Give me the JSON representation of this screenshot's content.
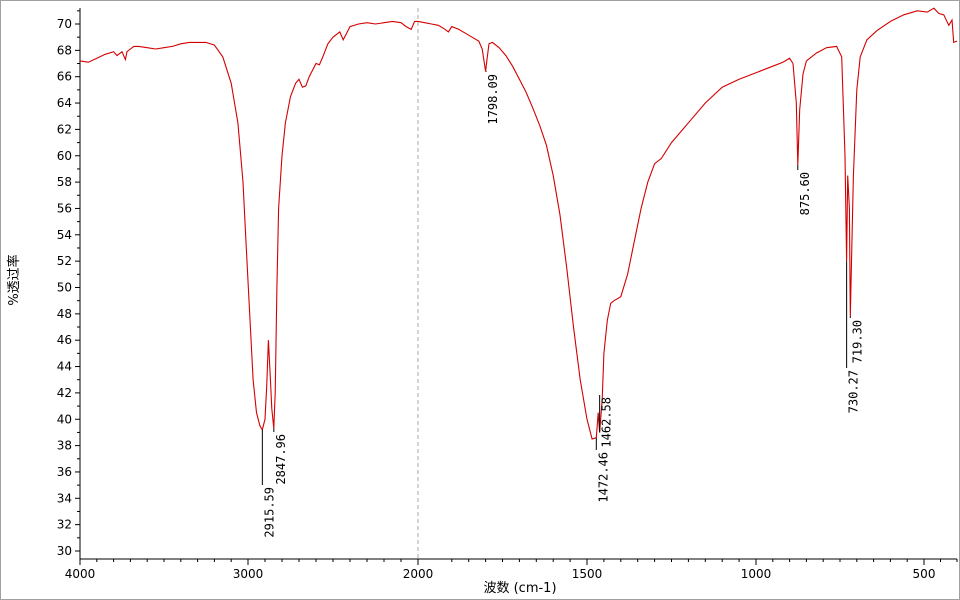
{
  "chart_data": {
    "type": "line",
    "xlabel": "波数 (cm-1)",
    "ylabel": "%透过率",
    "xlim": [
      4000,
      400
    ],
    "ylim": [
      29.5,
      71.2
    ],
    "x_ticks": [
      4000,
      3000,
      2000,
      1500,
      1000,
      500
    ],
    "x_tick_labels": [
      "4000",
      "3000",
      "2000",
      "1500",
      "1000",
      "500"
    ],
    "y_ticks": [
      30,
      32,
      34,
      36,
      38,
      40,
      42,
      44,
      46,
      48,
      50,
      52,
      54,
      56,
      58,
      60,
      62,
      64,
      66,
      68,
      70
    ],
    "y_tick_labels": [
      "30",
      "32",
      "34",
      "36",
      "38",
      "40",
      "42",
      "44",
      "46",
      "48",
      "50",
      "52",
      "54",
      "56",
      "58",
      "60",
      "62",
      "64",
      "66",
      "68",
      "70"
    ],
    "x_axis_scale": "reversed wavenumber scale, expanded below 2000 cm-1",
    "reference_line": 2000,
    "line_color": "#d40000",
    "series": [
      {
        "points": [
          [
            4000,
            67.2
          ],
          [
            3950,
            67.1
          ],
          [
            3900,
            67.4
          ],
          [
            3850,
            67.7
          ],
          [
            3800,
            67.9
          ],
          [
            3780,
            67.6
          ],
          [
            3750,
            67.9
          ],
          [
            3730,
            67.3
          ],
          [
            3720,
            67.9
          ],
          [
            3700,
            68.1
          ],
          [
            3680,
            68.3
          ],
          [
            3650,
            68.3
          ],
          [
            3600,
            68.2
          ],
          [
            3550,
            68.1
          ],
          [
            3500,
            68.2
          ],
          [
            3450,
            68.3
          ],
          [
            3400,
            68.5
          ],
          [
            3350,
            68.6
          ],
          [
            3300,
            68.6
          ],
          [
            3250,
            68.6
          ],
          [
            3200,
            68.4
          ],
          [
            3150,
            67.5
          ],
          [
            3100,
            65.5
          ],
          [
            3060,
            62.5
          ],
          [
            3030,
            58.0
          ],
          [
            3010,
            53.0
          ],
          [
            2990,
            48.0
          ],
          [
            2970,
            43.0
          ],
          [
            2950,
            40.5
          ],
          [
            2930,
            39.5
          ],
          [
            2915.59,
            39.2
          ],
          [
            2900,
            40.0
          ],
          [
            2890,
            42.5
          ],
          [
            2880,
            46.0
          ],
          [
            2870,
            43.5
          ],
          [
            2860,
            40.8
          ],
          [
            2847.96,
            39.3
          ],
          [
            2840,
            42.0
          ],
          [
            2830,
            50.0
          ],
          [
            2820,
            56.0
          ],
          [
            2800,
            60.0
          ],
          [
            2780,
            62.5
          ],
          [
            2750,
            64.5
          ],
          [
            2720,
            65.5
          ],
          [
            2700,
            65.8
          ],
          [
            2680,
            65.2
          ],
          [
            2660,
            65.3
          ],
          [
            2640,
            66.0
          ],
          [
            2600,
            67.0
          ],
          [
            2580,
            66.9
          ],
          [
            2560,
            67.5
          ],
          [
            2530,
            68.5
          ],
          [
            2500,
            69.0
          ],
          [
            2460,
            69.4
          ],
          [
            2440,
            68.8
          ],
          [
            2420,
            69.3
          ],
          [
            2400,
            69.8
          ],
          [
            2350,
            70.0
          ],
          [
            2300,
            70.1
          ],
          [
            2250,
            70.0
          ],
          [
            2200,
            70.1
          ],
          [
            2150,
            70.2
          ],
          [
            2100,
            70.1
          ],
          [
            2070,
            69.8
          ],
          [
            2040,
            69.6
          ],
          [
            2020,
            70.2
          ],
          [
            2000,
            70.2
          ],
          [
            1980,
            70.1
          ],
          [
            1960,
            70.0
          ],
          [
            1940,
            69.9
          ],
          [
            1920,
            69.6
          ],
          [
            1910,
            69.4
          ],
          [
            1900,
            69.8
          ],
          [
            1880,
            69.6
          ],
          [
            1860,
            69.3
          ],
          [
            1840,
            69.0
          ],
          [
            1820,
            68.7
          ],
          [
            1810,
            68.1
          ],
          [
            1800,
            66.4
          ],
          [
            1795,
            67.5
          ],
          [
            1790,
            68.5
          ],
          [
            1780,
            68.6
          ],
          [
            1760,
            68.2
          ],
          [
            1740,
            67.6
          ],
          [
            1720,
            66.8
          ],
          [
            1700,
            65.8
          ],
          [
            1680,
            64.8
          ],
          [
            1660,
            63.6
          ],
          [
            1640,
            62.3
          ],
          [
            1620,
            60.8
          ],
          [
            1600,
            58.5
          ],
          [
            1580,
            55.5
          ],
          [
            1560,
            51.5
          ],
          [
            1540,
            47.0
          ],
          [
            1520,
            43.0
          ],
          [
            1500,
            40.0
          ],
          [
            1485,
            38.5
          ],
          [
            1472.46,
            38.6
          ],
          [
            1467,
            40.5
          ],
          [
            1462.58,
            39.0
          ],
          [
            1455,
            41.5
          ],
          [
            1450,
            45.0
          ],
          [
            1440,
            47.5
          ],
          [
            1430,
            48.8
          ],
          [
            1420,
            49.0
          ],
          [
            1400,
            49.3
          ],
          [
            1380,
            51.0
          ],
          [
            1360,
            53.5
          ],
          [
            1340,
            56.0
          ],
          [
            1320,
            58.0
          ],
          [
            1300,
            59.4
          ],
          [
            1280,
            59.8
          ],
          [
            1250,
            61.0
          ],
          [
            1200,
            62.5
          ],
          [
            1150,
            64.0
          ],
          [
            1100,
            65.2
          ],
          [
            1050,
            65.8
          ],
          [
            1000,
            66.3
          ],
          [
            950,
            66.8
          ],
          [
            920,
            67.1
          ],
          [
            900,
            67.4
          ],
          [
            890,
            67.0
          ],
          [
            880,
            64.0
          ],
          [
            875.6,
            59.3
          ],
          [
            870,
            63.5
          ],
          [
            860,
            66.2
          ],
          [
            850,
            67.2
          ],
          [
            820,
            67.8
          ],
          [
            790,
            68.2
          ],
          [
            760,
            68.3
          ],
          [
            745,
            67.5
          ],
          [
            735,
            60.0
          ],
          [
            730.27,
            52.0
          ],
          [
            727,
            58.5
          ],
          [
            722,
            56.0
          ],
          [
            719.3,
            47.8
          ],
          [
            715,
            53.0
          ],
          [
            710,
            58.5
          ],
          [
            700,
            65.0
          ],
          [
            690,
            67.5
          ],
          [
            670,
            68.8
          ],
          [
            640,
            69.5
          ],
          [
            600,
            70.2
          ],
          [
            560,
            70.7
          ],
          [
            520,
            71.0
          ],
          [
            490,
            70.9
          ],
          [
            470,
            71.2
          ],
          [
            455,
            70.8
          ],
          [
            440,
            70.7
          ],
          [
            425,
            69.9
          ],
          [
            415,
            70.3
          ],
          [
            410,
            68.6
          ],
          [
            400,
            68.7
          ]
        ]
      }
    ],
    "peak_labels": [
      {
        "x": 2915.59,
        "text": "2915.59"
      },
      {
        "x": 2847.96,
        "text": "2847.96"
      },
      {
        "x": 1798.09,
        "text": "1798.09"
      },
      {
        "x": 1472.46,
        "text": "1472.46"
      },
      {
        "x": 1462.58,
        "text": "1462.58"
      },
      {
        "x": 875.6,
        "text": "875.60"
      },
      {
        "x": 730.27,
        "text": "730.27"
      },
      {
        "x": 719.3,
        "text": "719.30"
      }
    ]
  }
}
